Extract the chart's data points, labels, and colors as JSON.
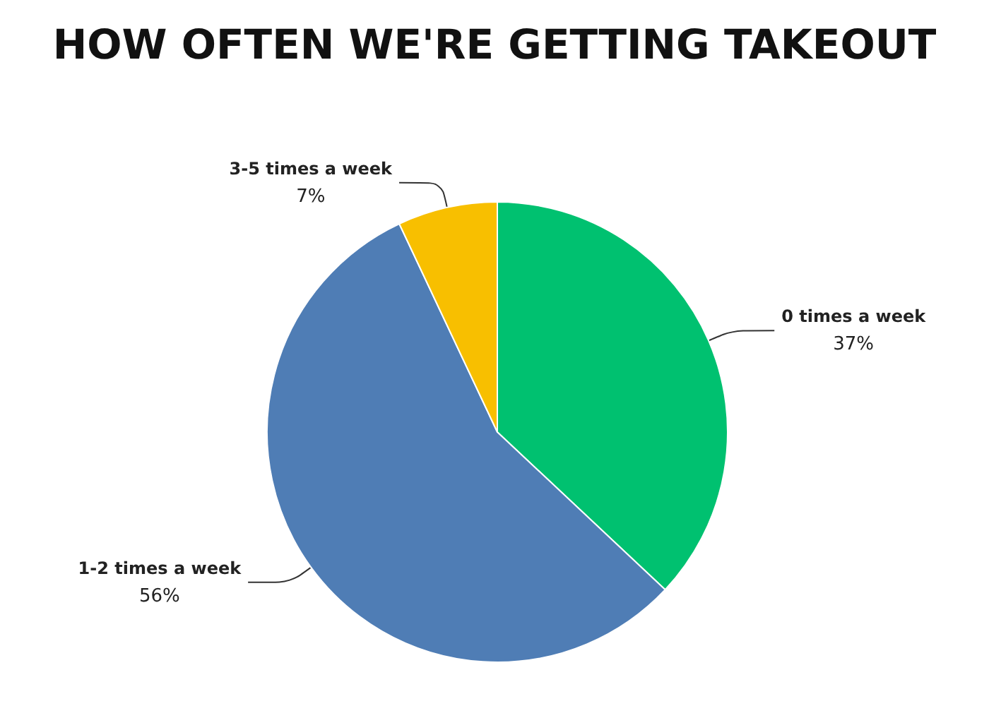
{
  "chart_data": {
    "type": "pie",
    "title": "HOW OFTEN WE'RE GETTING TAKEOUT",
    "categories": [
      "0 times a week",
      "1-2 times a week",
      "3-5 times a week"
    ],
    "values": [
      37,
      56,
      7
    ],
    "value_labels": [
      "37%",
      "56%",
      "7%"
    ],
    "colors": [
      "#00c170",
      "#4f7db5",
      "#f8bf00"
    ],
    "legend": false
  }
}
